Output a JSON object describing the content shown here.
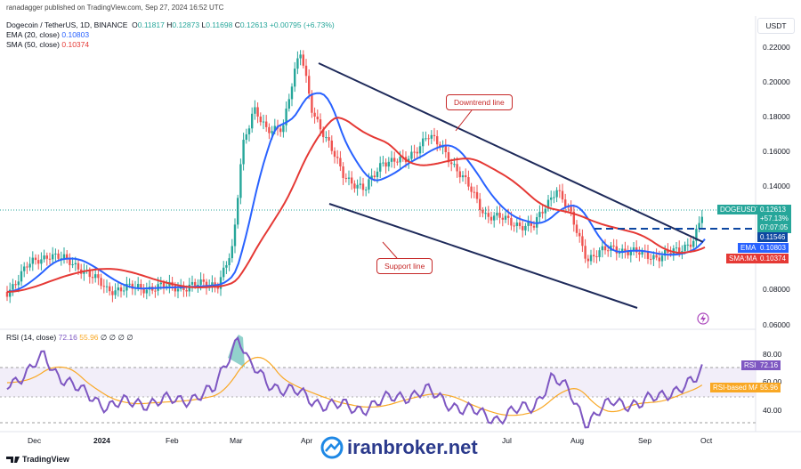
{
  "header": {
    "published": "ranadagger published on TradingView.com, Sep 27, 2024 16:52 UTC",
    "symbol_line": "Dogecoin / TetherUS, 1D, BINANCE",
    "ohlc": {
      "o_label": "O",
      "o": "0.11817",
      "h_label": "H",
      "h": "0.12873",
      "l_label": "L",
      "l": "0.11698",
      "c_label": "C",
      "c": "0.12613",
      "chg": "+0.00795 (+6.73%)"
    },
    "ema_label": "EMA (20, close)",
    "ema_value": "0.10803",
    "sma_label": "SMA (50, close)",
    "sma_value": "0.10374",
    "rsi_label": "RSI (14, close)",
    "rsi_value": "72.16",
    "rsi_ma_value": "55.96",
    "empty_values": "∅ ∅ ∅ ∅"
  },
  "currency": "USDT",
  "price_axis": [
    "0.22000",
    "0.20000",
    "0.18000",
    "0.16000",
    "0.14000",
    "0.08000",
    "0.06000"
  ],
  "price_tags": {
    "symbol": "DOGEUSDT",
    "price": "0.12613",
    "change": "+57.13%",
    "countdown": "07:07:05",
    "level": "0.11546",
    "ema_name": "EMA",
    "ema": "0.10803",
    "sma_name": "SMA:MA",
    "sma": "0.10374"
  },
  "rsi_axis": [
    "80.00",
    "60.00",
    "40.00"
  ],
  "rsi_tags": {
    "rsi_name": "RSI",
    "rsi": "72.16",
    "ma_name": "RSI-based MA",
    "ma": "55.96"
  },
  "time_axis": [
    "Dec",
    "2024",
    "Feb",
    "Mar",
    "Apr",
    "Jul",
    "Aug",
    "Sep",
    "Oct"
  ],
  "annotations": {
    "downtrend": "Downtrend line",
    "support": "Support line"
  },
  "footer": {
    "brand": "TradingView"
  },
  "watermark": "iranbroker.net",
  "colors": {
    "up": "#26a69a",
    "down": "#ef5350",
    "ema": "#2962ff",
    "sma": "#e53935",
    "rsi": "#7e57c2",
    "rsi_ma": "#f9a825",
    "annotation": "#c62828"
  }
}
